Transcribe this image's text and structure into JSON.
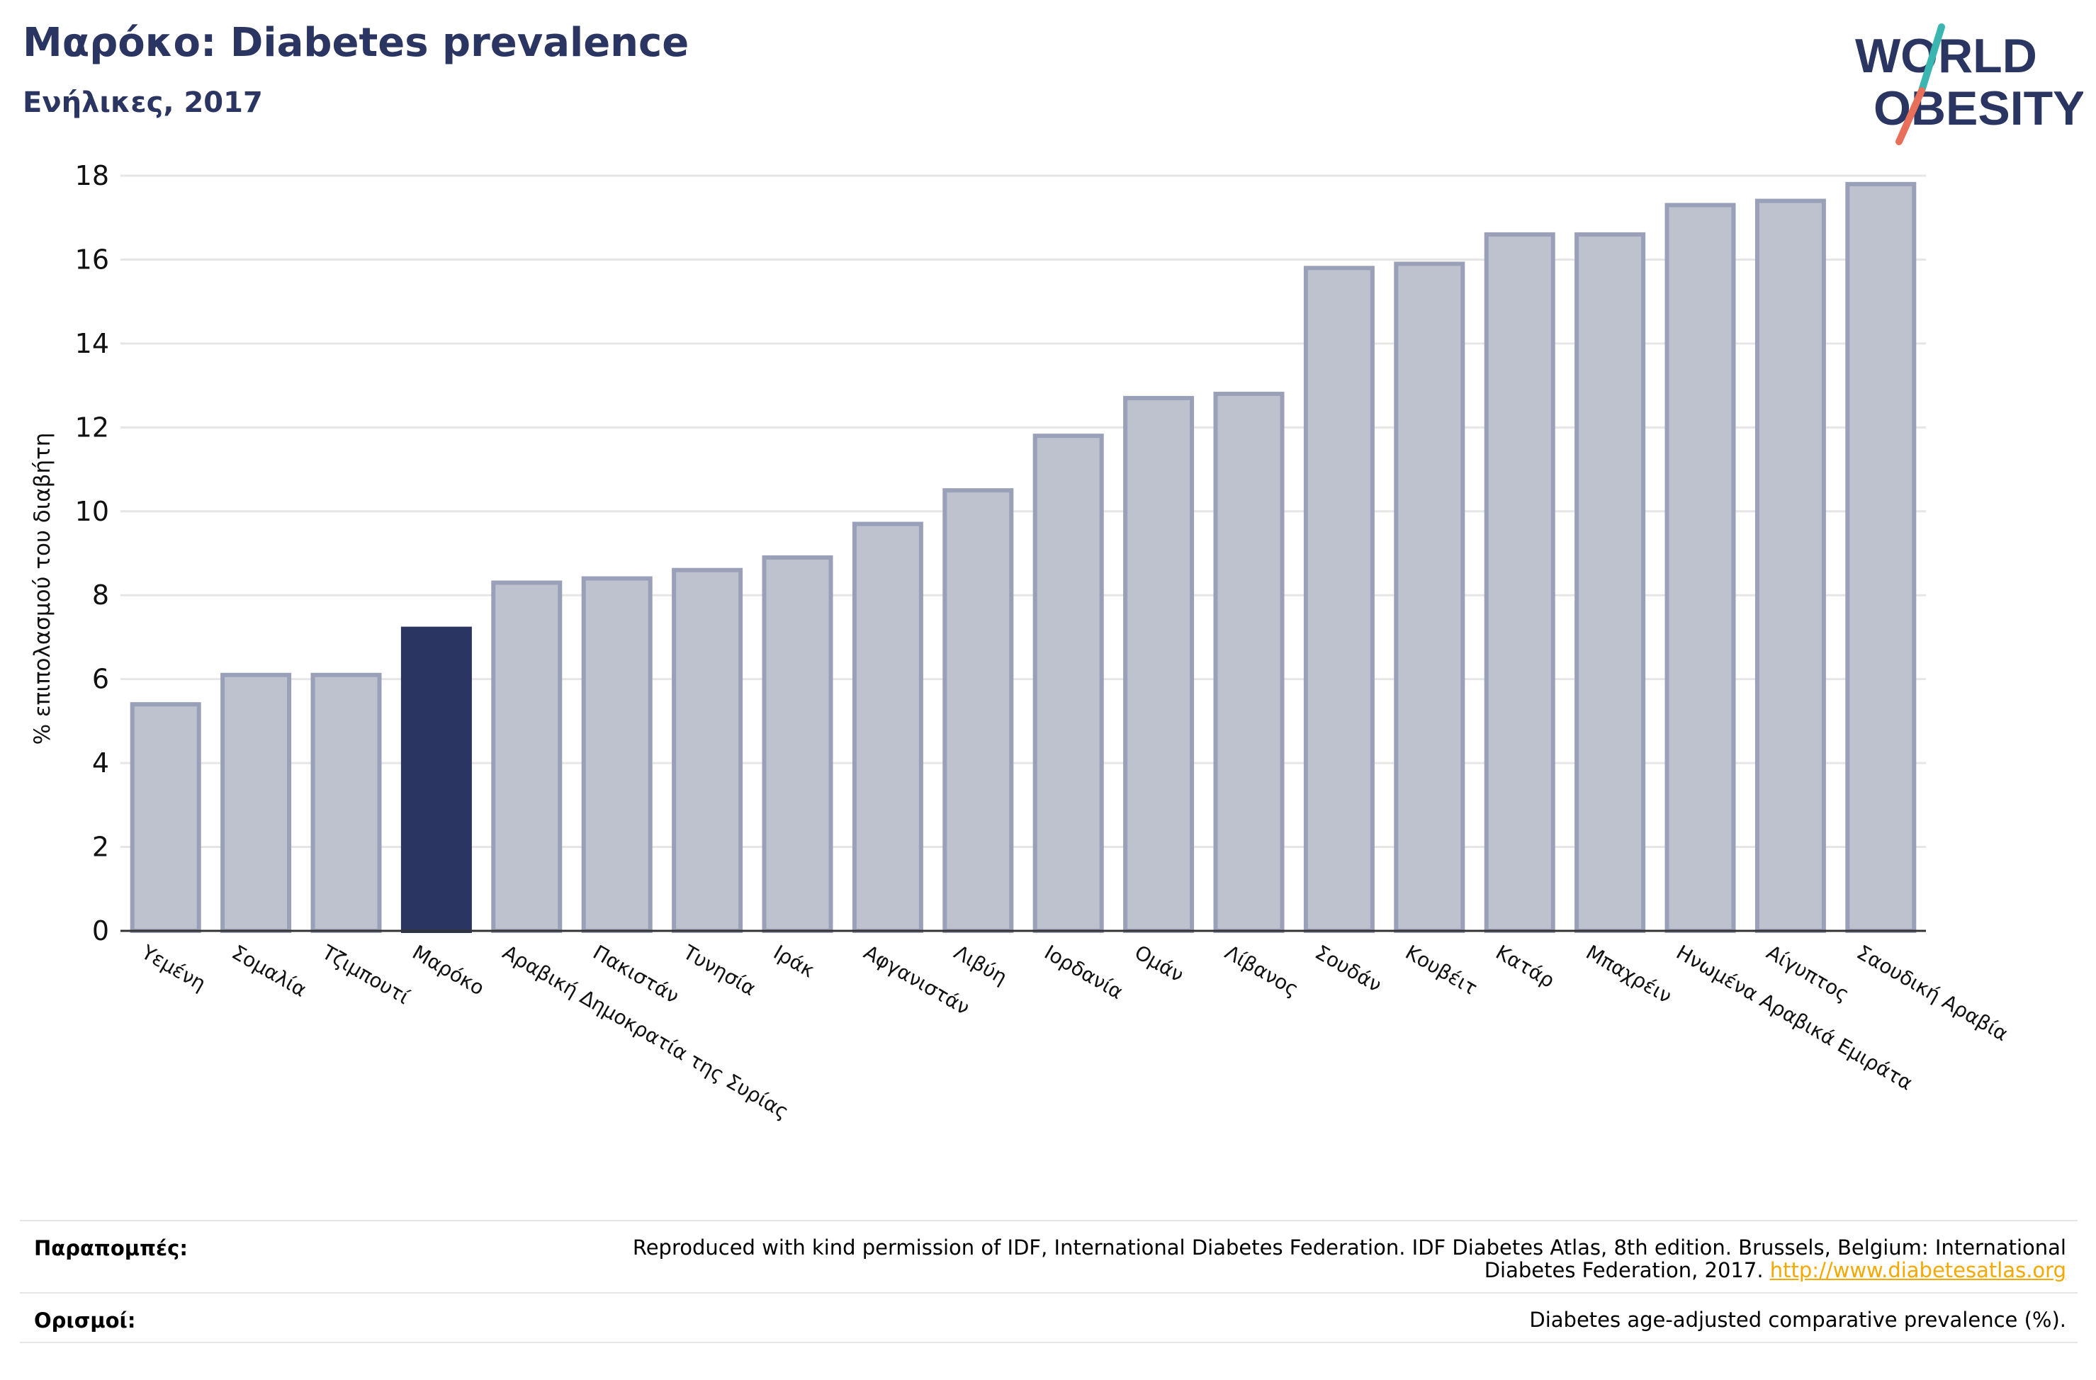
{
  "header": {
    "title": "Μαρόκο: Diabetes prevalence",
    "subtitle": "Ενήλικες, 2017"
  },
  "logo": {
    "line1": "WORLD",
    "line2": "OBESITY",
    "colors": {
      "text": "#2a3561",
      "slash_teal": "#3ab5b0",
      "slash_coral": "#e8705a"
    }
  },
  "chart_data": {
    "type": "bar",
    "ylabel": "% επιπολασμού του διαβήτη",
    "ylim": [
      0,
      18
    ],
    "yticks": [
      0,
      2,
      4,
      6,
      8,
      10,
      12,
      14,
      16,
      18
    ],
    "grid": true,
    "highlight": "Μαρόκο",
    "colors": {
      "bar": "#bec1ce",
      "bar_edge": "#9aa0b8",
      "highlight": "#2a3561",
      "grid": "#e6e6e6"
    },
    "categories": [
      "Υεμένη",
      "Σομαλία",
      "Τζιμπουτί",
      "Μαρόκο",
      "Αραβική Δημοκρατία της Συρίας",
      "Πακιστάν",
      "Τυνησία",
      "Ιράκ",
      "Αφγανιστάν",
      "Λιβύη",
      "Ιορδανία",
      "Ομάν",
      "Λίβανος",
      "Σουδάν",
      "Κουβέιτ",
      "Κατάρ",
      "Μπαχρέιν",
      "Ηνωμένα Αραβικά Εμιράτα",
      "Αίγυπτος",
      "Σαουδική Αραβία"
    ],
    "values": [
      5.4,
      6.1,
      6.1,
      7.2,
      8.3,
      8.4,
      8.6,
      8.9,
      9.7,
      10.5,
      11.8,
      12.7,
      12.8,
      15.8,
      15.9,
      16.6,
      16.6,
      17.3,
      17.4,
      17.8
    ]
  },
  "footer": {
    "references_label": "Παραπομπές:",
    "references_text": "Reproduced with kind permission of IDF, International Diabetes Federation. IDF Diabetes Atlas, 8th edition. Brussels, Belgium: International",
    "references_text2": "Diabetes Federation, 2017.",
    "references_link": "http://www.diabetesatlas.org",
    "definitions_label": "Ορισμοί:",
    "definitions_text": "Diabetes age-adjusted comparative prevalence (%)."
  }
}
